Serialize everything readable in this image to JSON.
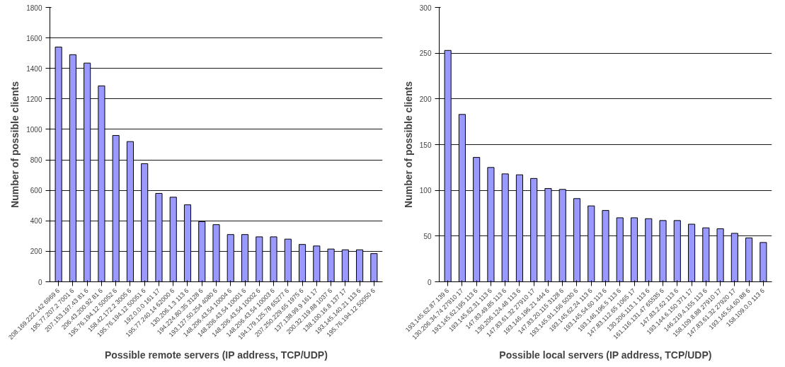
{
  "chart_data": [
    {
      "type": "bar",
      "xlabel": "Possible remote servers (IP address, TCP/UDP)",
      "ylabel": "Number of possible clients",
      "categories": [
        "208.169.222.142 6969 6",
        "195.77.207.2 7001 6",
        "207.153.197.43 81 6",
        "206.43.200.92 81 6",
        "195.76.194.12 50052 6",
        "158.42.172.2 3005 6",
        "195.76.194.12 50051 6",
        "192.0.0.0 161 17",
        "195.77.240.14 62000 6",
        "130.206.1.3 113 6",
        "194.224.80.35 3128 6",
        "193.127.50.254 4080 6",
        "148.206.43.54 10004 6",
        "148.206.43.54 10001 6",
        "148.206.43.54 10002 6",
        "148.206.43.54 10003 6",
        "194.179.125.78 65277 6",
        "207.250.229.65 1975 6",
        "137.138.99.9 161 17",
        "200.32.119.88 1037 6",
        "138.100.16.8 137 17",
        "193.145.140.21 113 6",
        "195.76.194.12 50050 6"
      ],
      "values": [
        1540,
        1490,
        1435,
        1285,
        960,
        920,
        775,
        580,
        555,
        505,
        395,
        375,
        310,
        310,
        295,
        295,
        280,
        245,
        235,
        215,
        210,
        210,
        185
      ],
      "color": "#9999ff",
      "ylim": [
        0,
        1800
      ],
      "yticks": [
        0,
        200,
        400,
        600,
        800,
        1000,
        1200,
        1400,
        1600,
        1800
      ],
      "grid": "y"
    },
    {
      "type": "bar",
      "xlabel": "Possible local servers (IP address, TCP/UDP)",
      "ylabel": "Number of possible clients",
      "categories": [
        "193.145.62.87 139 6",
        "130.206.34.74 27910 17",
        "193.145.62.195 113 6",
        "193.145.62.31 113 6",
        "147.83.49.85 113 6",
        "130.206.124.48 113 6",
        "147.83.61.32 27910 17",
        "193.146.196.21 444 6",
        "147.83.20.115 3128 6",
        "193.145.91.156 5030 6",
        "193.145.62.24 113 6",
        "193.145.54.60 113 6",
        "193.146.196.5 113 6",
        "147.83.112.65 1065 17",
        "130.206.113.1 113 6",
        "161.116.131.47 65535 6",
        "147.83.2.62 113 6",
        "193.144.6.150 371 17",
        "146.219.4.155 113 6",
        "158.109.8.88 27910 17",
        "147.83.61.32 27920 17",
        "193.145.54.60 88 6",
        "158.109.0.0 113 6"
      ],
      "values": [
        253,
        183,
        136,
        125,
        118,
        117,
        113,
        102,
        101,
        91,
        83,
        78,
        70,
        70,
        69,
        67,
        67,
        63,
        59,
        58,
        53,
        48,
        43
      ],
      "color": "#9999ff",
      "ylim": [
        0,
        300
      ],
      "yticks": [
        0,
        50,
        100,
        150,
        200,
        250,
        300
      ],
      "grid": "y"
    }
  ]
}
